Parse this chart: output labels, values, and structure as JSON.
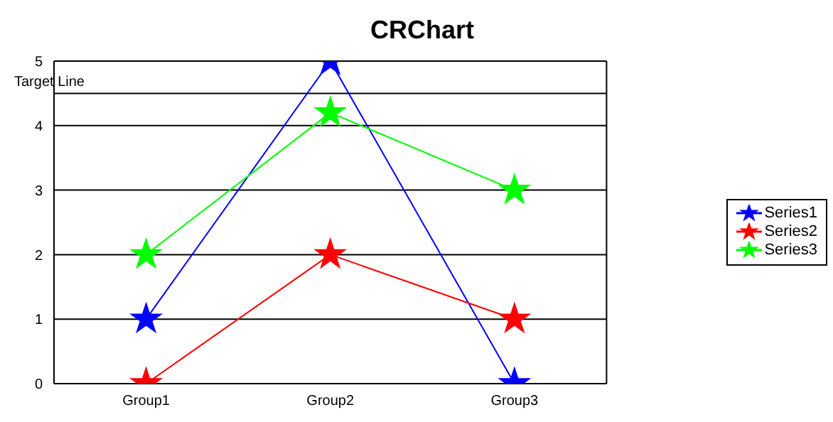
{
  "chart_data": {
    "type": "line",
    "title": "CRChart",
    "categories": [
      "Group1",
      "Group2",
      "Group3"
    ],
    "series": [
      {
        "name": "Series1",
        "color": "#0000ff",
        "values": [
          1,
          5,
          0
        ]
      },
      {
        "name": "Series2",
        "color": "#ff0000",
        "values": [
          0,
          2,
          1
        ]
      },
      {
        "name": "Series3",
        "color": "#00ff00",
        "values": [
          2,
          4.2,
          3
        ]
      }
    ],
    "ylim": [
      0,
      5
    ],
    "yticks": [
      0,
      1,
      2,
      3,
      4,
      5
    ],
    "grid": "y",
    "legend": "right",
    "marker": "star",
    "line_style": "solid",
    "ref_lines": [
      {
        "axis": "y",
        "value": 4.5,
        "label": "Target Line",
        "color": "#000000"
      }
    ]
  }
}
